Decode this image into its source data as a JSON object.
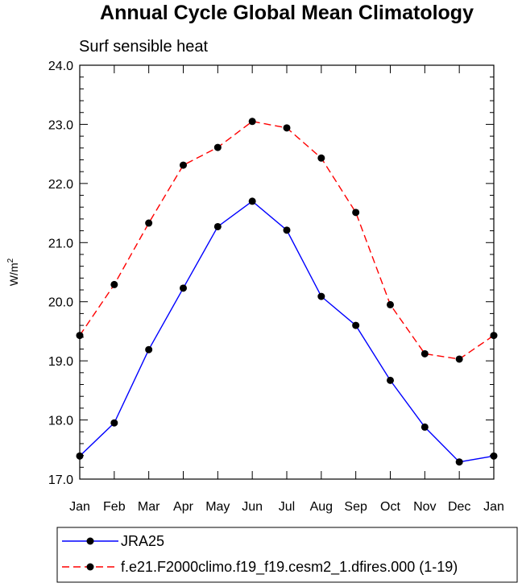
{
  "chart_data": {
    "type": "line",
    "title": "Annual Cycle Global Mean Climatology",
    "subtitle": "Surf sensible heat",
    "ylabel_base": "W/m",
    "ylabel_sup": "2",
    "xlabel": "",
    "categories": [
      "Jan",
      "Feb",
      "Mar",
      "Apr",
      "May",
      "Jun",
      "Jul",
      "Aug",
      "Sep",
      "Oct",
      "Nov",
      "Dec",
      "Jan"
    ],
    "ylim": [
      17.0,
      24.0
    ],
    "yticks": [
      "17.0",
      "18.0",
      "19.0",
      "20.0",
      "21.0",
      "22.0",
      "23.0",
      "24.0"
    ],
    "series": [
      {
        "name": "JRA25",
        "color": "#0000ff",
        "dash": "solid",
        "values": [
          17.39,
          17.95,
          19.19,
          20.23,
          21.27,
          21.7,
          21.21,
          20.09,
          19.6,
          18.67,
          17.88,
          17.29,
          17.39
        ]
      },
      {
        "name": "f.e21.F2000climo.f19_f19.cesm2_1.dfires.000 (1-19)",
        "color": "#ff0000",
        "dash": "dashed",
        "values": [
          19.43,
          20.29,
          21.33,
          22.31,
          22.61,
          23.05,
          22.94,
          22.43,
          21.51,
          19.95,
          19.12,
          19.03,
          19.43
        ]
      }
    ],
    "legend_position": "bottom"
  }
}
